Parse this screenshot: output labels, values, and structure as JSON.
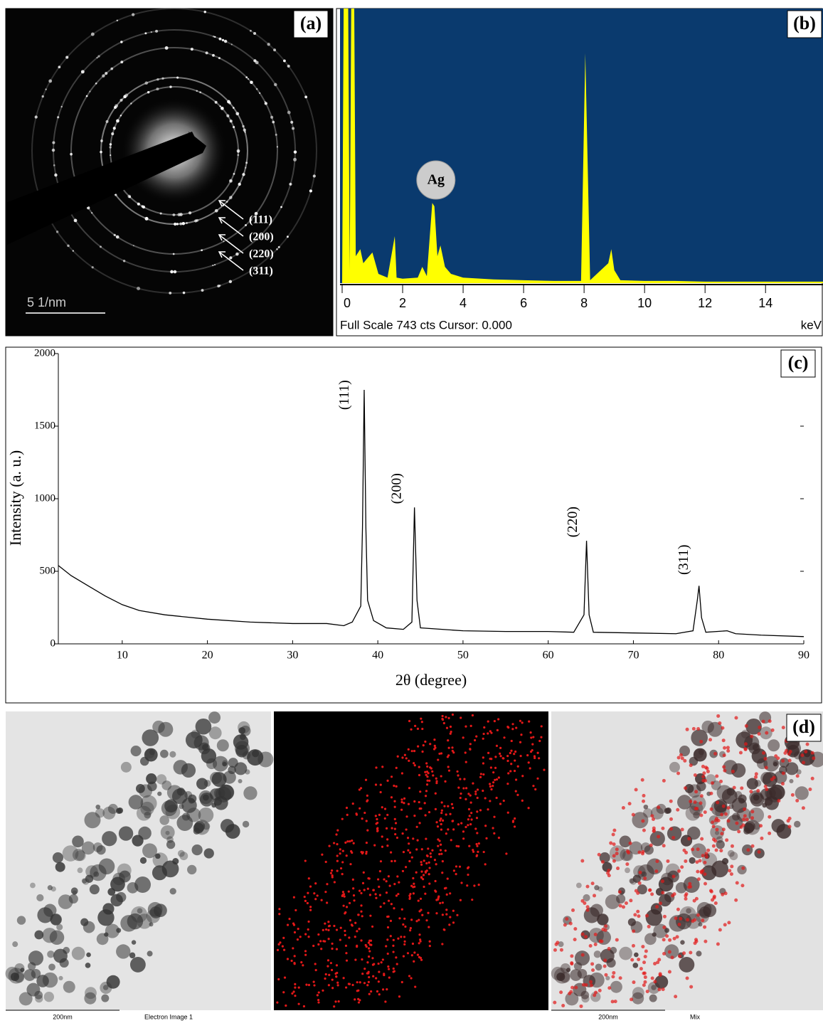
{
  "panels": {
    "a": {
      "label": "(a)",
      "ring_labels": [
        "(111)",
        "(200)",
        "(220)",
        "(311)"
      ],
      "scale_bar": "5 1/nm"
    },
    "b": {
      "label": "(b)",
      "footer": "Full Scale 743 cts Cursor: 0.000",
      "unit": "keV"
    },
    "c": {
      "label": "(c)"
    },
    "d": {
      "label": "(d)",
      "scale_bars": [
        "200nm",
        "200nm"
      ],
      "captions": [
        "Electron Image 1",
        "Mix"
      ]
    }
  },
  "chart_data": [
    {
      "type": "area",
      "color": "#ffff00",
      "background": "#0a3a6e",
      "x": [
        0,
        0.05,
        0.2,
        0.25,
        0.3,
        0.4,
        0.45,
        0.6,
        0.7,
        0.8,
        1.0,
        1.2,
        1.5,
        1.74,
        1.8,
        2.0,
        2.5,
        2.65,
        2.8,
        2.98,
        3.05,
        3.15,
        3.25,
        3.4,
        3.6,
        4.0,
        5.0,
        6.0,
        7.0,
        7.9,
        8.04,
        8.2,
        8.8,
        8.9,
        9.0,
        9.2,
        10.0,
        11.0,
        12.0,
        14.0,
        15.9
      ],
      "values": [
        0,
        743,
        743,
        35,
        743,
        743,
        73,
        92,
        54,
        64,
        83,
        25,
        15,
        127,
        15,
        12,
        15,
        44,
        19,
        217,
        208,
        73,
        102,
        44,
        25,
        15,
        10,
        8,
        6,
        6,
        622,
        8,
        54,
        92,
        35,
        8,
        6,
        6,
        4,
        4,
        4
      ],
      "xlim": [
        0,
        15.9
      ],
      "ylim": [
        0,
        743
      ],
      "xticks": [
        0,
        2,
        4,
        6,
        8,
        10,
        12,
        14
      ],
      "annotations": [
        {
          "text": "Ag",
          "x": 3.1,
          "y": 279
        }
      ]
    },
    {
      "type": "line",
      "color": "#000000",
      "xlabel": "2θ (degree)",
      "ylabel": "Intensity (a. u.)",
      "x": [
        2.5,
        4,
        6,
        8,
        10,
        12,
        15,
        20,
        25,
        30,
        34,
        36,
        37,
        38,
        38.2,
        38.4,
        38.6,
        38.8,
        39.5,
        41,
        43,
        44,
        44.3,
        44.6,
        45,
        50,
        55,
        60,
        63,
        64.2,
        64.5,
        64.8,
        65.3,
        70,
        75,
        77,
        77.5,
        77.7,
        78,
        78.5,
        81,
        82,
        85,
        90
      ],
      "values": [
        540,
        470,
        400,
        330,
        270,
        230,
        200,
        170,
        150,
        140,
        140,
        125,
        150,
        260,
        800,
        1750,
        800,
        300,
        160,
        110,
        100,
        150,
        940,
        300,
        110,
        90,
        85,
        85,
        80,
        200,
        710,
        200,
        80,
        75,
        70,
        90,
        300,
        400,
        180,
        80,
        90,
        70,
        60,
        50
      ],
      "xlim": [
        2.5,
        90
      ],
      "ylim": [
        0,
        2000
      ],
      "xticks": [
        10,
        20,
        30,
        40,
        50,
        60,
        70,
        80,
        90
      ],
      "yticks": [
        0,
        500,
        1000,
        1500,
        2000
      ],
      "annotations": [
        {
          "text": "(111)",
          "x": 36.2,
          "y": 1715
        },
        {
          "text": "(200)",
          "x": 42.3,
          "y": 1070
        },
        {
          "text": "(220)",
          "x": 63.0,
          "y": 840
        },
        {
          "text": "(311)",
          "x": 76.0,
          "y": 580
        }
      ]
    }
  ]
}
